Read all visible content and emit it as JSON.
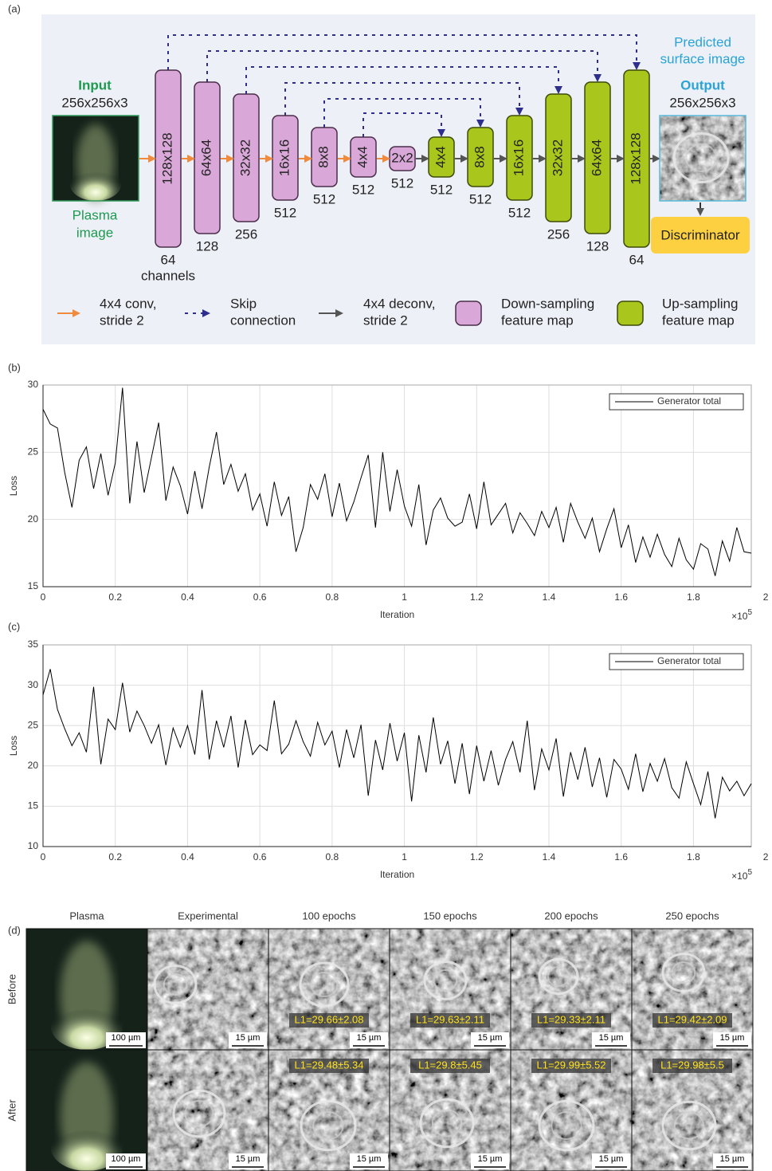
{
  "panel_labels": [
    "(a)",
    "(b)",
    "(c)",
    "(d)"
  ],
  "diagram": {
    "input": {
      "title": "Input",
      "size": "256x256x3",
      "caption": [
        "Plasma",
        "image"
      ]
    },
    "output": {
      "title": "Output",
      "size": "256x256x3",
      "caption": [
        "Predicted",
        "surface image"
      ]
    },
    "discriminator": "Discriminator",
    "down_blocks": [
      {
        "label": "128x128",
        "channels": 64
      },
      {
        "label": "64x64",
        "channels": 128
      },
      {
        "label": "32x32",
        "channels": 256
      },
      {
        "label": "16x16",
        "channels": 512
      },
      {
        "label": "8x8",
        "channels": 512
      },
      {
        "label": "4x4",
        "channels": 512
      },
      {
        "label": "2x2",
        "channels": 512
      }
    ],
    "up_blocks": [
      {
        "label": "4x4",
        "channels": 512
      },
      {
        "label": "8x8",
        "channels": 512
      },
      {
        "label": "16x16",
        "channels": 512
      },
      {
        "label": "32x32",
        "channels": 256
      },
      {
        "label": "64x64",
        "channels": 128
      },
      {
        "label": "128x128",
        "channels": 64
      }
    ],
    "channels_label": "channels",
    "legend": [
      {
        "text": [
          "4x4 conv,",
          "stride 2"
        ]
      },
      {
        "text": [
          "Skip",
          "connection"
        ]
      },
      {
        "text": [
          "4x4 deconv,",
          "stride 2"
        ]
      },
      {
        "text": [
          "Down-sampling",
          "feature map"
        ]
      },
      {
        "text": [
          "Up-sampling",
          "feature map"
        ]
      }
    ]
  },
  "chart_data": [
    {
      "type": "line",
      "xlabel": "Iteration",
      "ylabel": "Loss",
      "x_multiplier": {
        "base": "×10",
        "exponent": "5"
      },
      "xlim": [
        0,
        1.96
      ],
      "ylim": [
        15,
        30
      ],
      "xticks": [
        0,
        0.2,
        0.4,
        0.6,
        0.8,
        1,
        1.2,
        1.4,
        1.6,
        1.8,
        2
      ],
      "yticks": [
        15,
        20,
        25,
        30
      ],
      "grid": true,
      "legend_position": "upper right",
      "x": [
        0,
        0.02,
        0.04,
        0.06,
        0.08,
        0.1,
        0.12,
        0.14,
        0.16,
        0.18,
        0.2,
        0.22,
        0.24,
        0.26,
        0.28,
        0.3,
        0.32,
        0.34,
        0.36,
        0.38,
        0.4,
        0.42,
        0.44,
        0.46,
        0.48,
        0.5,
        0.52,
        0.54,
        0.56,
        0.58,
        0.6,
        0.62,
        0.64,
        0.66,
        0.68,
        0.7,
        0.72,
        0.74,
        0.76,
        0.78,
        0.8,
        0.82,
        0.84,
        0.86,
        0.88,
        0.9,
        0.92,
        0.94,
        0.96,
        0.98,
        1,
        1.02,
        1.04,
        1.06,
        1.08,
        1.1,
        1.12,
        1.14,
        1.16,
        1.18,
        1.2,
        1.22,
        1.24,
        1.26,
        1.28,
        1.3,
        1.32,
        1.34,
        1.36,
        1.38,
        1.4,
        1.42,
        1.44,
        1.46,
        1.48,
        1.5,
        1.52,
        1.54,
        1.56,
        1.58,
        1.6,
        1.62,
        1.64,
        1.66,
        1.68,
        1.7,
        1.72,
        1.74,
        1.76,
        1.78,
        1.8,
        1.82,
        1.84,
        1.86,
        1.88,
        1.9,
        1.92,
        1.94,
        1.96
      ],
      "series": [
        {
          "name": "Generator total",
          "color": "#000000",
          "values": [
            28.2,
            27.1,
            26.8,
            23.5,
            20.9,
            24.4,
            25.4,
            22.3,
            24.9,
            21.8,
            24.2,
            29.8,
            21.2,
            25.8,
            22.0,
            24.6,
            27.2,
            21.4,
            23.9,
            22.5,
            20.4,
            23.6,
            20.8,
            23.9,
            26.5,
            22.6,
            24.1,
            22.1,
            23.4,
            20.7,
            21.9,
            19.5,
            22.8,
            20.3,
            21.7,
            17.6,
            19.4,
            22.6,
            21.5,
            23.4,
            20.2,
            22.7,
            19.9,
            21.3,
            23.1,
            24.8,
            19.4,
            25.0,
            20.6,
            23.7,
            21.0,
            19.5,
            22.6,
            18.1,
            20.7,
            21.6,
            20.1,
            19.5,
            19.8,
            21.9,
            19.3,
            22.8,
            19.6,
            20.4,
            21.2,
            19.0,
            20.5,
            19.7,
            18.8,
            20.6,
            19.4,
            20.9,
            18.3,
            21.2,
            19.8,
            18.6,
            20.1,
            17.6,
            19.3,
            20.8,
            17.9,
            19.6,
            16.8,
            18.7,
            17.2,
            18.9,
            17.4,
            16.5,
            18.6,
            17.0,
            16.3,
            18.2,
            17.8,
            15.8,
            18.4,
            16.9,
            19.4,
            17.6,
            17.5
          ]
        }
      ]
    },
    {
      "type": "line",
      "xlabel": "Iteration",
      "ylabel": "Loss",
      "x_multiplier": {
        "base": "×10",
        "exponent": "5"
      },
      "xlim": [
        0,
        1.96
      ],
      "ylim": [
        10,
        35
      ],
      "xticks": [
        0,
        0.2,
        0.4,
        0.6,
        0.8,
        1,
        1.2,
        1.4,
        1.6,
        1.8,
        2
      ],
      "yticks": [
        10,
        15,
        20,
        25,
        30,
        35
      ],
      "grid": true,
      "legend_position": "upper right",
      "x": [
        0,
        0.02,
        0.04,
        0.06,
        0.08,
        0.1,
        0.12,
        0.14,
        0.16,
        0.18,
        0.2,
        0.22,
        0.24,
        0.26,
        0.28,
        0.3,
        0.32,
        0.34,
        0.36,
        0.38,
        0.4,
        0.42,
        0.44,
        0.46,
        0.48,
        0.5,
        0.52,
        0.54,
        0.56,
        0.58,
        0.6,
        0.62,
        0.64,
        0.66,
        0.68,
        0.7,
        0.72,
        0.74,
        0.76,
        0.78,
        0.8,
        0.82,
        0.84,
        0.86,
        0.88,
        0.9,
        0.92,
        0.94,
        0.96,
        0.98,
        1,
        1.02,
        1.04,
        1.06,
        1.08,
        1.1,
        1.12,
        1.14,
        1.16,
        1.18,
        1.2,
        1.22,
        1.24,
        1.26,
        1.28,
        1.3,
        1.32,
        1.34,
        1.36,
        1.38,
        1.4,
        1.42,
        1.44,
        1.46,
        1.48,
        1.5,
        1.52,
        1.54,
        1.56,
        1.58,
        1.6,
        1.62,
        1.64,
        1.66,
        1.68,
        1.7,
        1.72,
        1.74,
        1.76,
        1.78,
        1.8,
        1.82,
        1.84,
        1.86,
        1.88,
        1.9,
        1.92,
        1.94,
        1.96
      ],
      "series": [
        {
          "name": "Generator total",
          "color": "#000000",
          "values": [
            28.8,
            32.0,
            27.0,
            24.6,
            22.5,
            24.1,
            21.7,
            29.8,
            20.2,
            25.8,
            24.5,
            30.3,
            24.2,
            26.8,
            25.0,
            22.8,
            25.1,
            20.1,
            24.7,
            22.3,
            25.0,
            21.4,
            29.4,
            20.8,
            25.6,
            22.3,
            26.2,
            19.8,
            25.7,
            21.4,
            22.6,
            21.9,
            28.1,
            21.5,
            22.7,
            25.6,
            23.0,
            21.2,
            25.4,
            22.6,
            24.3,
            19.8,
            24.5,
            21.0,
            25.1,
            16.3,
            23.2,
            19.5,
            25.3,
            20.6,
            24.1,
            15.6,
            23.8,
            19.2,
            26.0,
            20.2,
            23.1,
            17.8,
            22.8,
            16.5,
            22.5,
            18.1,
            21.9,
            17.6,
            20.8,
            23.0,
            19.2,
            25.6,
            17.0,
            22.1,
            19.5,
            23.4,
            16.2,
            21.7,
            18.3,
            22.3,
            17.4,
            21.0,
            16.1,
            20.8,
            19.6,
            17.1,
            21.5,
            16.8,
            20.3,
            18.1,
            20.9,
            17.3,
            16.0,
            20.5,
            17.8,
            15.2,
            19.3,
            13.5,
            18.6,
            16.9,
            18.1,
            16.3,
            17.8
          ]
        }
      ]
    }
  ],
  "image_grid": {
    "columns": [
      "Plasma",
      "Experimental",
      "100 epochs",
      "150 epochs",
      "200 epochs",
      "250 epochs"
    ],
    "rows": [
      {
        "label": "Before",
        "l1": [
          "L1=29.66±2.08",
          "L1=29.63±2.11",
          "L1=29.33±2.11",
          "L1=29.42±2.09"
        ],
        "scale_bars": [
          "100 µm",
          "15 µm",
          "15 µm",
          "15 µm",
          "15 µm",
          "15 µm"
        ]
      },
      {
        "label": "After",
        "l1": [
          "L1=29.48±5.34",
          "L1=29.8±5.45",
          "L1=29.99±5.52",
          "L1=29.98±5.5"
        ],
        "scale_bars": [
          "100 µm",
          "15 µm",
          "15 µm",
          "15 µm",
          "15 µm",
          "15 µm"
        ]
      }
    ]
  }
}
